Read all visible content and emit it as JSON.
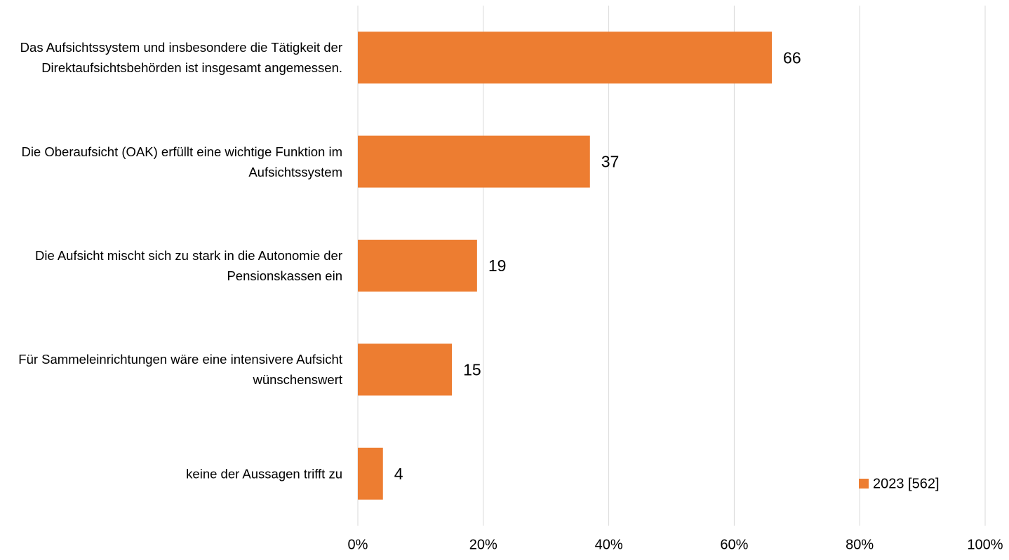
{
  "chart_data": {
    "type": "bar",
    "orientation": "horizontal",
    "categories": [
      "Das Aufsichtssystem und insbesondere die Tätigkeit der Direktaufsichtsbehörden ist insgesamt angemessen.",
      "Die Oberaufsicht (OAK) erfüllt eine wichtige Funktion im Aufsichtssystem",
      "Die Aufsicht mischt sich zu stark in die Autonomie der Pensionskassen ein",
      "Für Sammeleinrichtungen wäre eine intensivere Aufsicht wünschenswert",
      "keine der Aussagen trifft zu"
    ],
    "series": [
      {
        "name": "2023 [562]",
        "color": "#ed7d31",
        "values": [
          66,
          37,
          19,
          15,
          4
        ]
      }
    ],
    "xlim": [
      0,
      100
    ],
    "xticks": [
      {
        "value": 0,
        "label": "0%"
      },
      {
        "value": 20,
        "label": "20%"
      },
      {
        "value": 40,
        "label": "40%"
      },
      {
        "value": 60,
        "label": "60%"
      },
      {
        "value": 80,
        "label": "80%"
      },
      {
        "value": 100,
        "label": "100%"
      }
    ],
    "grid": true,
    "legend": "lower right"
  }
}
